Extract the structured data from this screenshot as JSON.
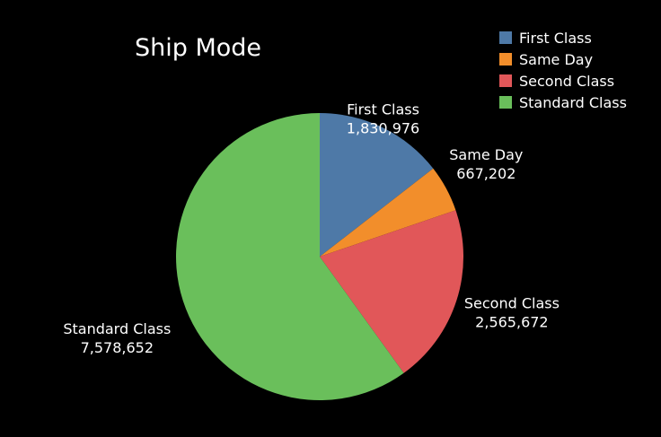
{
  "chart_data": {
    "type": "pie",
    "title": "Ship Mode",
    "legend_position": "top-right",
    "slices": [
      {
        "label": "First Class",
        "value": 1830976,
        "value_text": "1,830,976",
        "color": "#4e79a7"
      },
      {
        "label": "Same Day",
        "value": 667202,
        "value_text": "667,202",
        "color": "#f28e2b"
      },
      {
        "label": "Second Class",
        "value": 2565672,
        "value_text": "2,565,672",
        "color": "#e15759"
      },
      {
        "label": "Standard Class",
        "value": 7578652,
        "value_text": "7,578,652",
        "color": "#6abf5b"
      }
    ]
  }
}
